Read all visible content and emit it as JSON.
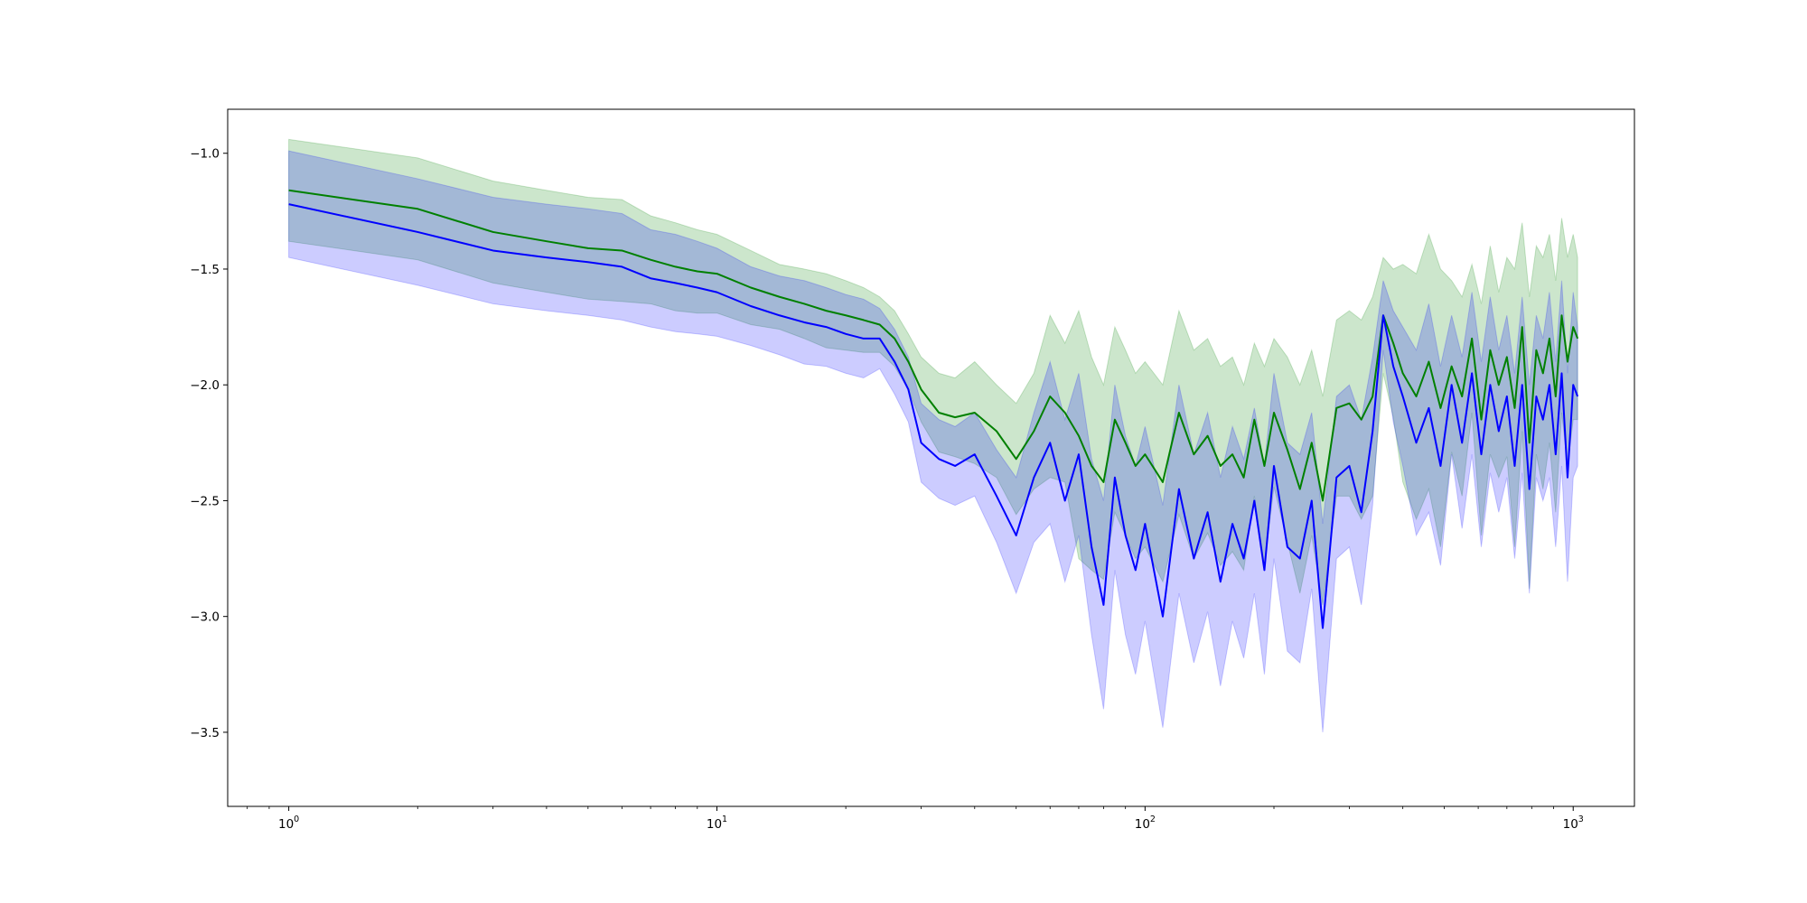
{
  "chart_data": {
    "type": "line",
    "title": "",
    "xlabel": "",
    "ylabel": "",
    "xscale": "log",
    "xlim": [
      0.72,
      1390
    ],
    "ylim": [
      -3.82,
      -0.81
    ],
    "grid": false,
    "legend": "none",
    "x_ticks": [
      {
        "value": 1,
        "base": "10",
        "exp": "0"
      },
      {
        "value": 10,
        "base": "10",
        "exp": "1"
      },
      {
        "value": 100,
        "base": "10",
        "exp": "2"
      },
      {
        "value": 1000,
        "base": "10",
        "exp": "3"
      }
    ],
    "y_ticks": [
      {
        "value": -1.0,
        "label": "−1.0"
      },
      {
        "value": -1.5,
        "label": "−1.5"
      },
      {
        "value": -2.0,
        "label": "−2.0"
      },
      {
        "value": -2.5,
        "label": "−2.5"
      },
      {
        "value": -3.0,
        "label": "−3.0"
      },
      {
        "value": -3.5,
        "label": "−3.5"
      }
    ],
    "series": [
      {
        "color": "#008000",
        "band_color": "#008000",
        "band_opacity": 0.2,
        "x": [
          1,
          2,
          3,
          4,
          5,
          6,
          7,
          8,
          9,
          10,
          12,
          14,
          16,
          18,
          20,
          22,
          24,
          26,
          28,
          30,
          33,
          36,
          40,
          45,
          50,
          55,
          60,
          65,
          70,
          75,
          80,
          85,
          90,
          95,
          100,
          110,
          120,
          130,
          140,
          150,
          160,
          170,
          180,
          190,
          200,
          215,
          230,
          245,
          260,
          280,
          300,
          320,
          340,
          360,
          380,
          400,
          430,
          460,
          490,
          520,
          550,
          580,
          610,
          640,
          670,
          700,
          730,
          760,
          790,
          820,
          850,
          880,
          910,
          940,
          970,
          1000,
          1024
        ],
        "y": [
          -1.16,
          -1.24,
          -1.34,
          -1.38,
          -1.41,
          -1.42,
          -1.46,
          -1.49,
          -1.51,
          -1.52,
          -1.58,
          -1.62,
          -1.65,
          -1.68,
          -1.7,
          -1.72,
          -1.74,
          -1.8,
          -1.9,
          -2.02,
          -2.12,
          -2.14,
          -2.12,
          -2.2,
          -2.32,
          -2.2,
          -2.05,
          -2.12,
          -2.22,
          -2.35,
          -2.42,
          -2.15,
          -2.25,
          -2.35,
          -2.3,
          -2.42,
          -2.12,
          -2.3,
          -2.22,
          -2.35,
          -2.3,
          -2.4,
          -2.15,
          -2.35,
          -2.12,
          -2.28,
          -2.45,
          -2.25,
          -2.5,
          -2.1,
          -2.08,
          -2.15,
          -2.05,
          -1.7,
          -1.82,
          -1.95,
          -2.05,
          -1.9,
          -2.1,
          -1.92,
          -2.05,
          -1.8,
          -2.15,
          -1.85,
          -2.0,
          -1.88,
          -2.1,
          -1.75,
          -2.25,
          -1.85,
          -1.95,
          -1.8,
          -2.05,
          -1.7,
          -1.9,
          -1.75,
          -1.8
        ],
        "upper": [
          -0.94,
          -1.02,
          -1.12,
          -1.16,
          -1.19,
          -1.2,
          -1.27,
          -1.3,
          -1.33,
          -1.35,
          -1.42,
          -1.48,
          -1.5,
          -1.52,
          -1.55,
          -1.58,
          -1.62,
          -1.68,
          -1.78,
          -1.88,
          -1.95,
          -1.97,
          -1.9,
          -2.0,
          -2.08,
          -1.95,
          -1.7,
          -1.82,
          -1.68,
          -1.88,
          -2.0,
          -1.75,
          -1.85,
          -1.95,
          -1.9,
          -2.0,
          -1.68,
          -1.85,
          -1.8,
          -1.92,
          -1.88,
          -2.0,
          -1.82,
          -1.92,
          -1.8,
          -1.88,
          -2.0,
          -1.85,
          -2.05,
          -1.72,
          -1.68,
          -1.72,
          -1.62,
          -1.45,
          -1.5,
          -1.48,
          -1.52,
          -1.35,
          -1.5,
          -1.55,
          -1.62,
          -1.48,
          -1.65,
          -1.4,
          -1.6,
          -1.45,
          -1.5,
          -1.3,
          -1.62,
          -1.4,
          -1.45,
          -1.35,
          -1.55,
          -1.28,
          -1.45,
          -1.35,
          -1.45
        ],
        "lower": [
          -1.38,
          -1.46,
          -1.56,
          -1.6,
          -1.63,
          -1.64,
          -1.65,
          -1.68,
          -1.69,
          -1.69,
          -1.74,
          -1.76,
          -1.8,
          -1.84,
          -1.85,
          -1.86,
          -1.86,
          -1.92,
          -2.02,
          -2.16,
          -2.29,
          -2.31,
          -2.34,
          -2.4,
          -2.56,
          -2.45,
          -2.4,
          -2.42,
          -2.75,
          -2.8,
          -2.84,
          -2.55,
          -2.65,
          -2.75,
          -2.7,
          -2.85,
          -2.56,
          -2.75,
          -2.64,
          -2.78,
          -2.72,
          -2.8,
          -2.48,
          -2.78,
          -2.44,
          -2.68,
          -2.9,
          -2.65,
          -2.95,
          -2.48,
          -2.48,
          -2.58,
          -2.48,
          -1.95,
          -2.14,
          -2.42,
          -2.58,
          -2.45,
          -2.7,
          -2.29,
          -2.48,
          -2.12,
          -2.65,
          -2.3,
          -2.4,
          -2.31,
          -2.7,
          -2.2,
          -2.88,
          -2.3,
          -2.45,
          -2.25,
          -2.55,
          -2.12,
          -2.35,
          -2.15,
          -2.15
        ]
      },
      {
        "color": "#0000ff",
        "band_color": "#0000ff",
        "band_opacity": 0.2,
        "x": [
          1,
          2,
          3,
          4,
          5,
          6,
          7,
          8,
          9,
          10,
          12,
          14,
          16,
          18,
          20,
          22,
          24,
          26,
          28,
          30,
          33,
          36,
          40,
          45,
          50,
          55,
          60,
          65,
          70,
          75,
          80,
          85,
          90,
          95,
          100,
          110,
          120,
          130,
          140,
          150,
          160,
          170,
          180,
          190,
          200,
          215,
          230,
          245,
          260,
          280,
          300,
          320,
          340,
          360,
          380,
          400,
          430,
          460,
          490,
          520,
          550,
          580,
          610,
          640,
          670,
          700,
          730,
          760,
          790,
          820,
          850,
          880,
          910,
          940,
          970,
          1000,
          1024
        ],
        "y": [
          -1.22,
          -1.34,
          -1.42,
          -1.45,
          -1.47,
          -1.49,
          -1.54,
          -1.56,
          -1.58,
          -1.6,
          -1.66,
          -1.7,
          -1.73,
          -1.75,
          -1.78,
          -1.8,
          -1.8,
          -1.9,
          -2.02,
          -2.25,
          -2.32,
          -2.35,
          -2.3,
          -2.48,
          -2.65,
          -2.4,
          -2.25,
          -2.5,
          -2.3,
          -2.7,
          -2.95,
          -2.4,
          -2.65,
          -2.8,
          -2.6,
          -3.0,
          -2.45,
          -2.75,
          -2.55,
          -2.85,
          -2.6,
          -2.75,
          -2.5,
          -2.8,
          -2.35,
          -2.7,
          -2.75,
          -2.5,
          -3.05,
          -2.4,
          -2.35,
          -2.55,
          -2.2,
          -1.7,
          -1.92,
          -2.05,
          -2.25,
          -2.1,
          -2.35,
          -2.0,
          -2.25,
          -1.95,
          -2.3,
          -2.0,
          -2.2,
          -2.05,
          -2.35,
          -2.0,
          -2.45,
          -2.05,
          -2.15,
          -2.0,
          -2.3,
          -1.95,
          -2.4,
          -2.0,
          -2.05
        ],
        "upper": [
          -0.99,
          -1.11,
          -1.19,
          -1.22,
          -1.24,
          -1.26,
          -1.33,
          -1.35,
          -1.38,
          -1.41,
          -1.49,
          -1.53,
          -1.55,
          -1.58,
          -1.61,
          -1.63,
          -1.67,
          -1.76,
          -1.88,
          -2.08,
          -2.15,
          -2.18,
          -2.12,
          -2.28,
          -2.4,
          -2.12,
          -1.9,
          -2.15,
          -1.95,
          -2.32,
          -2.5,
          -2.0,
          -2.22,
          -2.35,
          -2.18,
          -2.52,
          -2.0,
          -2.3,
          -2.12,
          -2.4,
          -2.18,
          -2.32,
          -2.1,
          -2.35,
          -1.95,
          -2.25,
          -2.3,
          -2.12,
          -2.6,
          -2.05,
          -2.0,
          -2.15,
          -1.88,
          -1.55,
          -1.68,
          -1.75,
          -1.85,
          -1.65,
          -1.92,
          -1.7,
          -1.88,
          -1.6,
          -1.9,
          -1.62,
          -1.85,
          -1.7,
          -1.95,
          -1.62,
          -2.0,
          -1.7,
          -1.8,
          -1.6,
          -1.9,
          -1.55,
          -1.95,
          -1.6,
          -1.75
        ],
        "lower": [
          -1.45,
          -1.57,
          -1.65,
          -1.68,
          -1.7,
          -1.72,
          -1.75,
          -1.77,
          -1.78,
          -1.79,
          -1.83,
          -1.87,
          -1.91,
          -1.92,
          -1.95,
          -1.97,
          -1.93,
          -2.04,
          -2.16,
          -2.42,
          -2.49,
          -2.52,
          -2.48,
          -2.68,
          -2.9,
          -2.68,
          -2.6,
          -2.85,
          -2.65,
          -3.08,
          -3.4,
          -2.8,
          -3.08,
          -3.25,
          -3.02,
          -3.48,
          -2.9,
          -3.2,
          -2.98,
          -3.3,
          -3.02,
          -3.18,
          -2.9,
          -3.25,
          -2.75,
          -3.15,
          -3.2,
          -2.88,
          -3.5,
          -2.75,
          -2.7,
          -2.95,
          -2.52,
          -1.85,
          -2.16,
          -2.35,
          -2.65,
          -2.55,
          -2.78,
          -2.3,
          -2.62,
          -2.3,
          -2.7,
          -2.38,
          -2.55,
          -2.4,
          -2.75,
          -2.38,
          -2.9,
          -2.4,
          -2.5,
          -2.4,
          -2.7,
          -2.35,
          -2.85,
          -2.4,
          -2.35
        ]
      }
    ]
  }
}
